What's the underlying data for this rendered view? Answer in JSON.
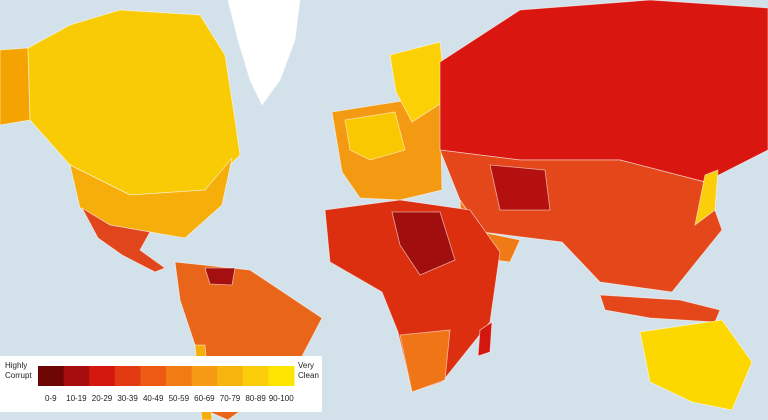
{
  "legend": {
    "low_label": [
      "Highly",
      "Corrupt"
    ],
    "high_label": [
      "Very",
      "Clean"
    ],
    "bins": [
      {
        "label": "0-9",
        "color": "#6e0606"
      },
      {
        "label": "10-19",
        "color": "#a80d0d"
      },
      {
        "label": "20-29",
        "color": "#d3170f"
      },
      {
        "label": "30-39",
        "color": "#e33a12"
      },
      {
        "label": "40-49",
        "color": "#ec5a14"
      },
      {
        "label": "50-59",
        "color": "#f17b14"
      },
      {
        "label": "60-69",
        "color": "#f59a12"
      },
      {
        "label": "70-79",
        "color": "#f8b510"
      },
      {
        "label": "80-89",
        "color": "#fbcd0b"
      },
      {
        "label": "90-100",
        "color": "#fde500"
      }
    ]
  }
}
